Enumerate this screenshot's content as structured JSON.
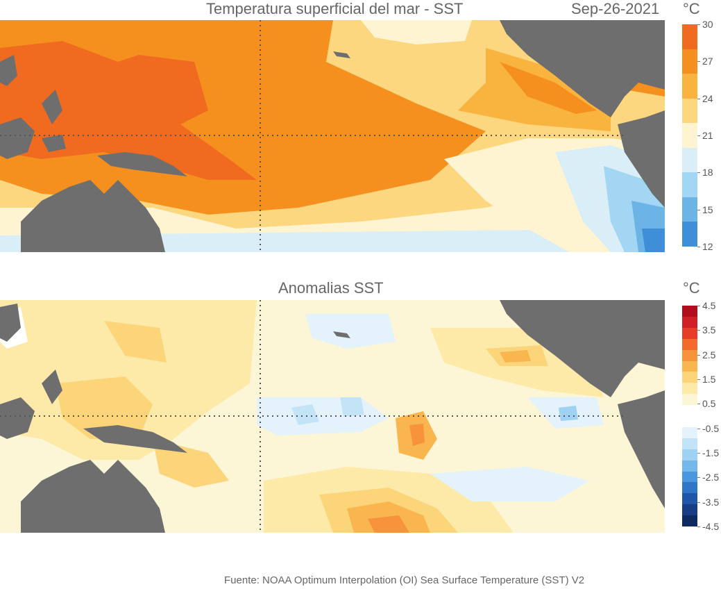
{
  "sst_panel": {
    "title": "Temperatura superficial del mar - SST",
    "date": "Sep-26-2021",
    "unit": "°C",
    "colorbar_labels": [
      "30",
      "27",
      "24",
      "21",
      "18",
      "15",
      "12"
    ],
    "colorbar_colors": [
      "#f06a20",
      "#f5901f",
      "#f9b33f",
      "#fcd77f",
      "#fef4d2",
      "#d9eef6",
      "#a3d6f2",
      "#6cb3e6",
      "#3e8fd8"
    ]
  },
  "anom_panel": {
    "title": "Anomalias SST",
    "unit": "°C",
    "colorbar_labels": [
      "4.5",
      "3.5",
      "2.5",
      "1.5",
      "0.5",
      "-0.5",
      "-1.5",
      "-2.5",
      "-3.5",
      "-4.5"
    ],
    "colorbar_colors": [
      "#b00d1d",
      "#d01f26",
      "#e53d2a",
      "#f36a2c",
      "#f7933b",
      "#f9b64f",
      "#fcd57a",
      "#fde9a8",
      "#fdf6d6",
      "#ffffff",
      "#ffffff",
      "#e3f2fb",
      "#c3e4f6",
      "#9fd1f2",
      "#74b7ea",
      "#4b97dd",
      "#2f76c8",
      "#1f56a8",
      "#173e85",
      "#0f2a60"
    ]
  },
  "footer": "Fuente: NOAA Optimum Interpolation (OI) Sea Surface Temperature (SST) V2"
}
